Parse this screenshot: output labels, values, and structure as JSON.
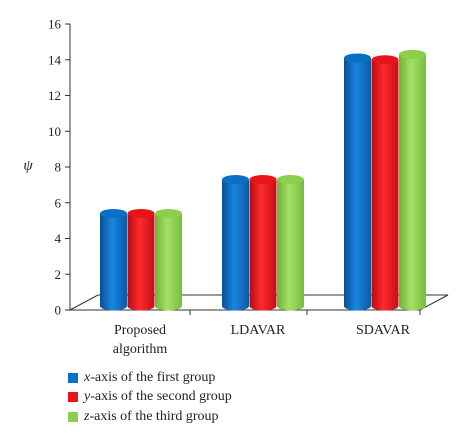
{
  "chart_data": {
    "type": "bar",
    "categories": [
      [
        "Proposed",
        "algorithm"
      ],
      [
        "LDAVAR"
      ],
      [
        "SDAVAR"
      ]
    ],
    "series": [
      {
        "name_var": "x",
        "name_rest": "-axis of the first group",
        "color": "#0b6fc6",
        "values": [
          5.4,
          7.3,
          14.1
        ]
      },
      {
        "name_var": "y",
        "name_rest": "-axis of the second group",
        "color": "#e8141b",
        "values": [
          5.4,
          7.3,
          14.0
        ]
      },
      {
        "name_var": "z",
        "name_rest": "-axis of the third group",
        "color": "#8ccf4d",
        "values": [
          5.4,
          7.3,
          14.3
        ]
      }
    ],
    "ylabel": "ψ",
    "ylim": [
      0,
      16
    ],
    "yticks": [
      0,
      2,
      4,
      6,
      8,
      10,
      12,
      14,
      16
    ],
    "legend": "bottom-left",
    "grid": false
  }
}
